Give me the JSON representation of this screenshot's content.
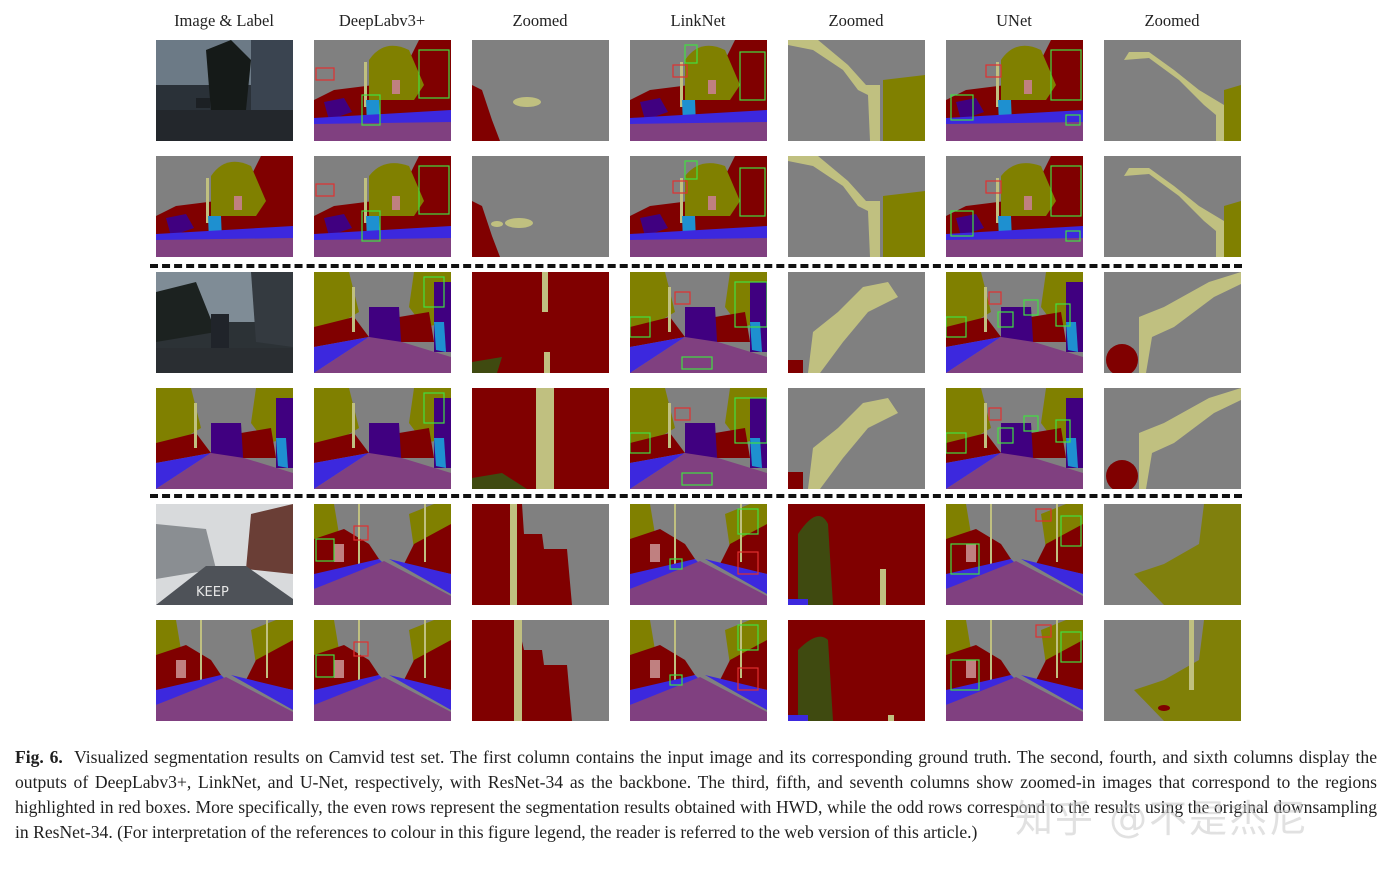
{
  "figure": {
    "column_headers": [
      "Image & Label",
      "DeepLabv3+",
      "Zoomed",
      "LinkNet",
      "Zoomed",
      "UNet",
      "Zoomed"
    ],
    "groups": [
      {
        "name": "group-1",
        "rows": [
          "odd: original downsampling",
          "even: HWD"
        ]
      },
      {
        "name": "group-2",
        "rows": [
          "odd: original downsampling",
          "even: HWD"
        ]
      },
      {
        "name": "group-3",
        "rows": [
          "odd: original downsampling",
          "even: HWD"
        ]
      }
    ],
    "palette": {
      "sky": "#808080",
      "building": "#800000",
      "pole": "#c0c080",
      "road": "#804080",
      "sidewalk": "#3c28de",
      "tree": "#808000",
      "sign": "#c08080",
      "car": "#400080",
      "pedestrian": "#1e90d0",
      "bicyclist": "#3f4a10",
      "misc": "#000000",
      "highlight_red": "#e03030",
      "highlight_green": "#40e040"
    }
  },
  "caption": {
    "label": "Fig. 6.",
    "text": "Visualized segmentation results on Camvid test set. The first column contains the input image and its corresponding ground truth. The second, fourth, and sixth columns display the outputs of DeepLabv3+, LinkNet, and U-Net, respectively, with ResNet-34 as the backbone. The third, fifth, and seventh columns show zoomed-in images that correspond to the regions highlighted in red boxes. More specifically, the even rows represent the segmentation results obtained with HWD, while the odd rows correspond to the results using the original downsampling in ResNet-34. (For interpretation of the references to colour in this figure legend, the reader is referred to the web version of this article.)"
  },
  "watermark": "知乎 @不是杰尼"
}
